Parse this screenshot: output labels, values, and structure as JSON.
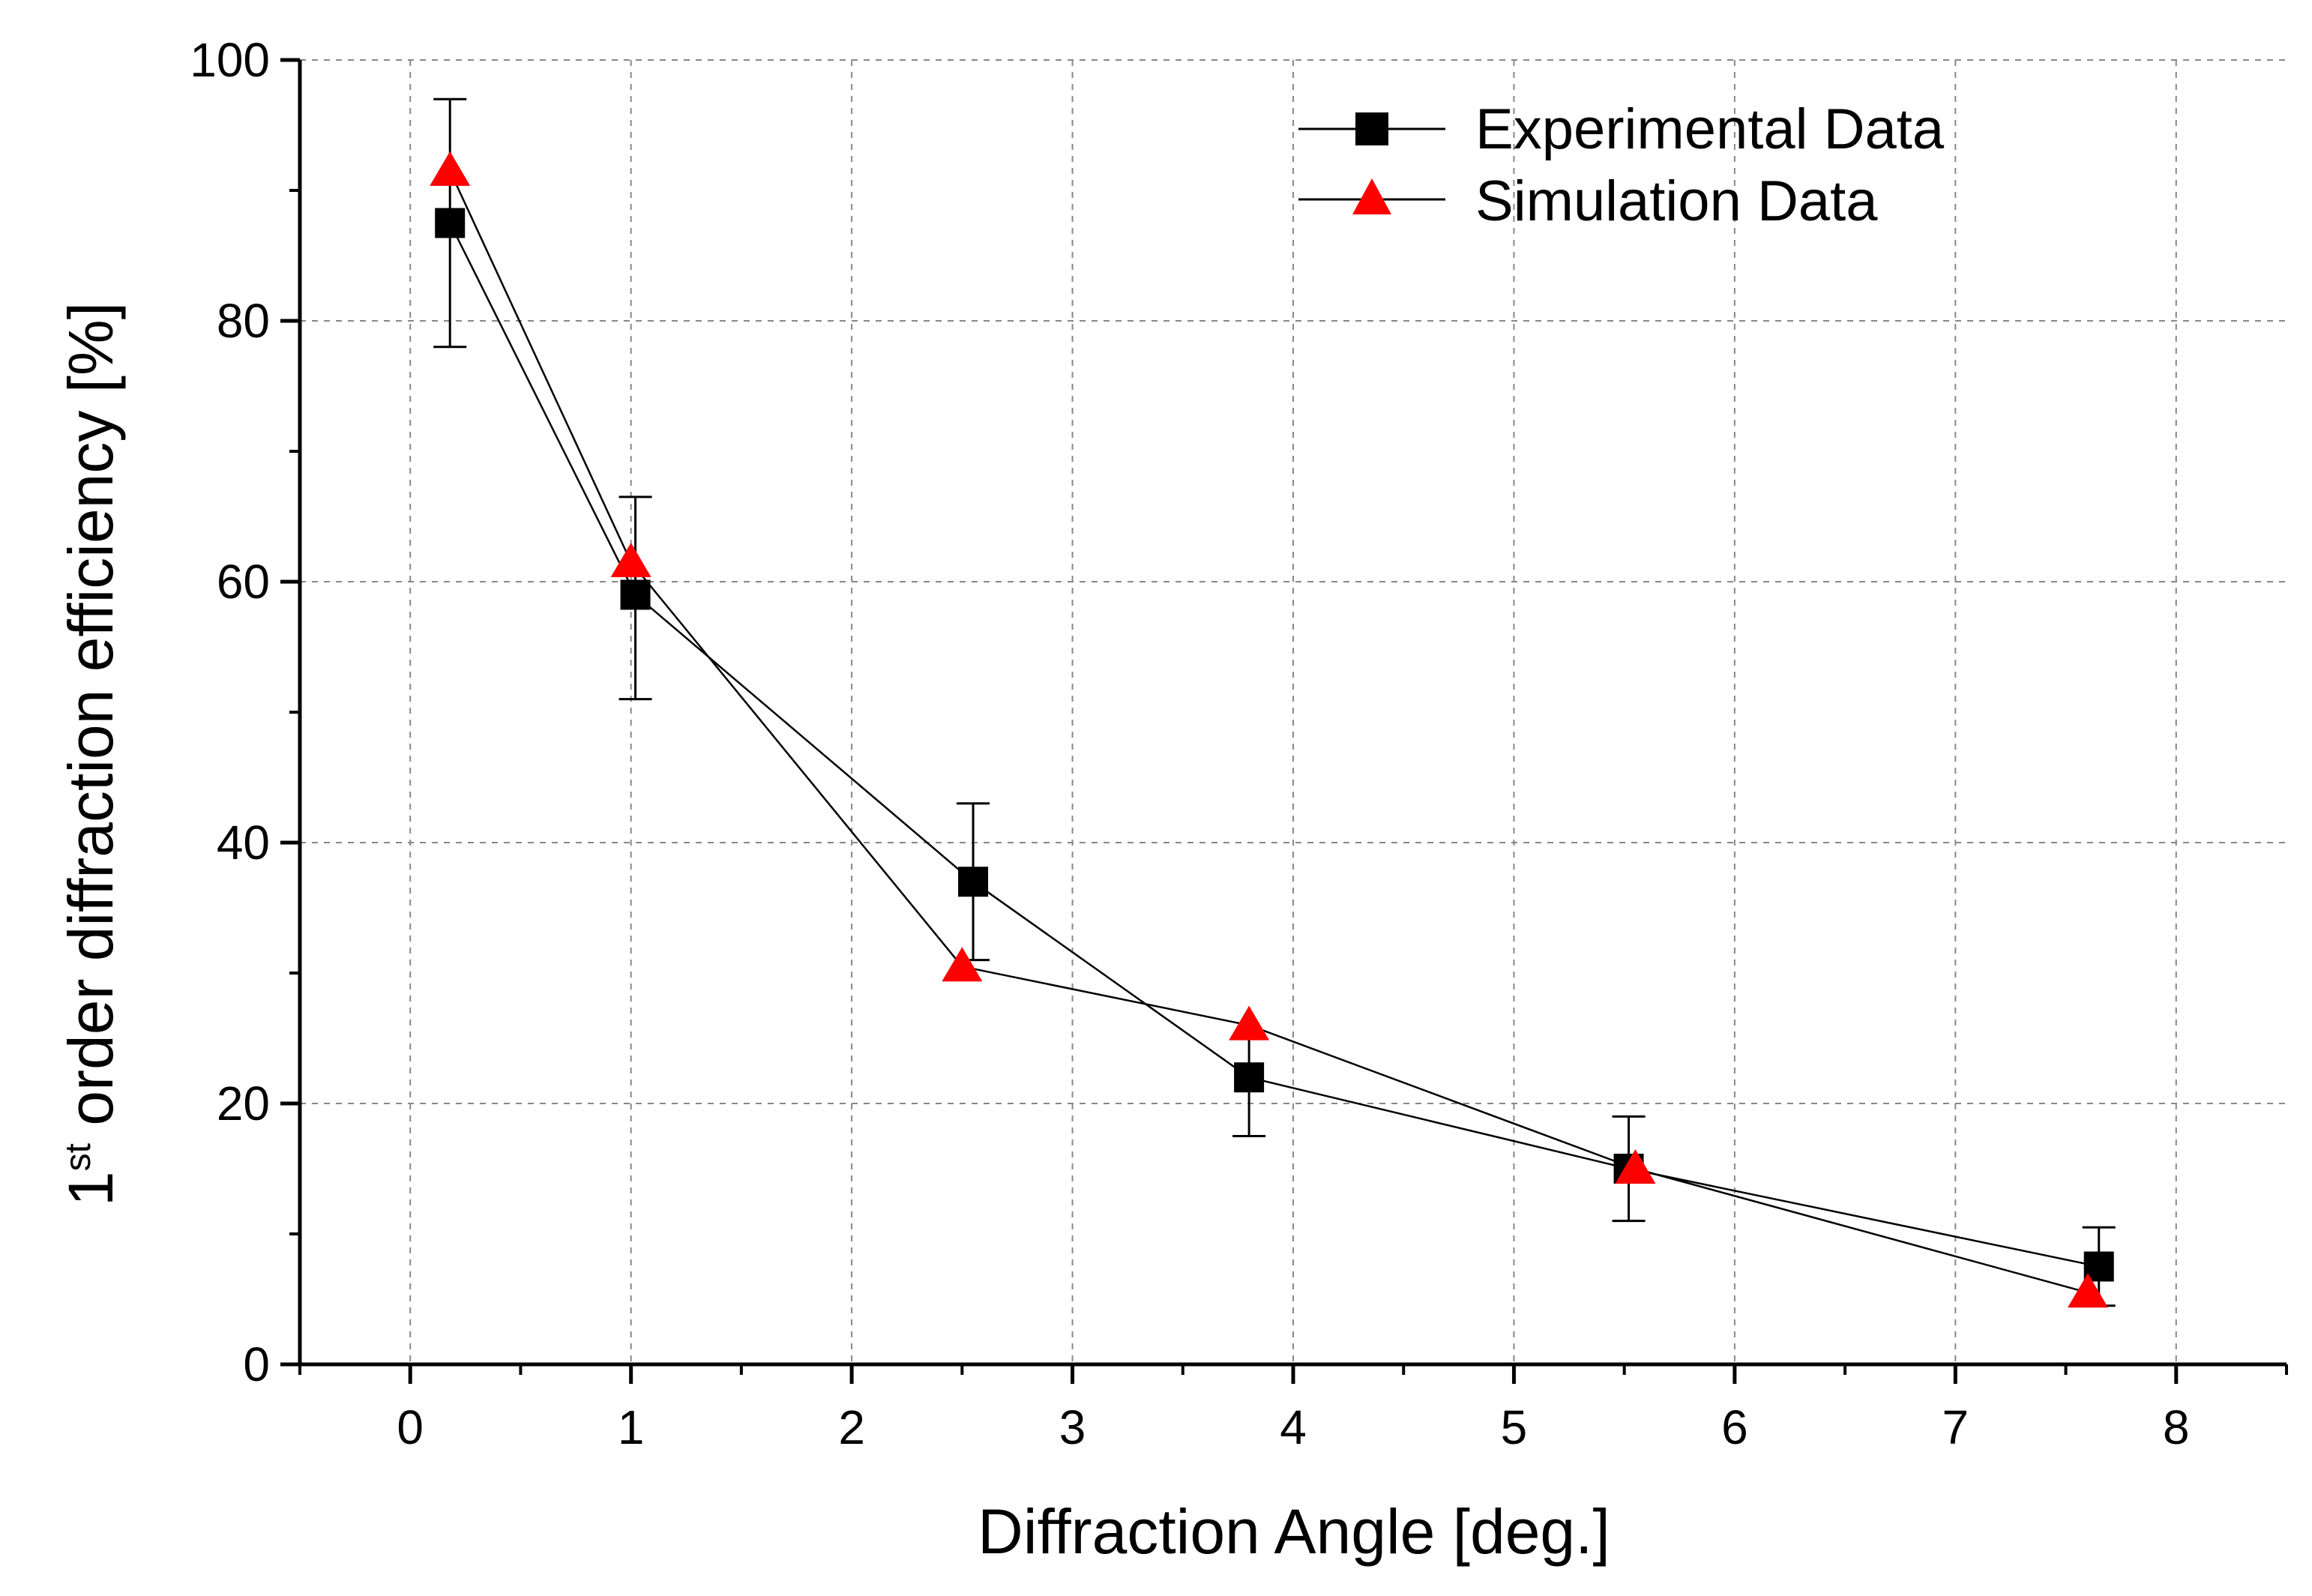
{
  "chart_data": {
    "type": "scatter",
    "xlabel": "Diffraction Angle [deg.]",
    "ylabel": {
      "prefix": "1",
      "superscript": "st",
      "suffix": " order diffraction efficiency [%]"
    },
    "xlim": [
      -0.5,
      8.5
    ],
    "ylim": [
      0,
      100
    ],
    "xticks": [
      0,
      1,
      2,
      3,
      4,
      5,
      6,
      7,
      8
    ],
    "xtick_labels": [
      "0",
      "1",
      "2",
      "3",
      "4",
      "5",
      "6",
      "7",
      "8"
    ],
    "yticks": [
      0,
      20,
      40,
      60,
      80,
      100
    ],
    "ytick_labels": [
      "0",
      "20",
      "40",
      "60",
      "80",
      "100"
    ],
    "grid": true,
    "legend_position": "top-right",
    "series": [
      {
        "name": "Experimental Data",
        "marker": "square",
        "color": "#000000",
        "x": [
          0.18,
          1.02,
          2.55,
          3.8,
          5.52,
          7.65
        ],
        "y": [
          87.5,
          59.0,
          37.0,
          22.0,
          15.0,
          7.5
        ],
        "err_upper": [
          97.0,
          66.5,
          43.0,
          25.0,
          19.0,
          10.5
        ],
        "err_lower": [
          78.0,
          51.0,
          31.0,
          17.5,
          11.0,
          4.5
        ]
      },
      {
        "name": "Simulation Data",
        "marker": "triangle",
        "color": "#ff0000",
        "x": [
          0.18,
          1.0,
          2.5,
          3.8,
          5.55,
          7.6
        ],
        "y": [
          91.5,
          61.5,
          30.5,
          26.0,
          15.0,
          5.5
        ]
      }
    ]
  }
}
